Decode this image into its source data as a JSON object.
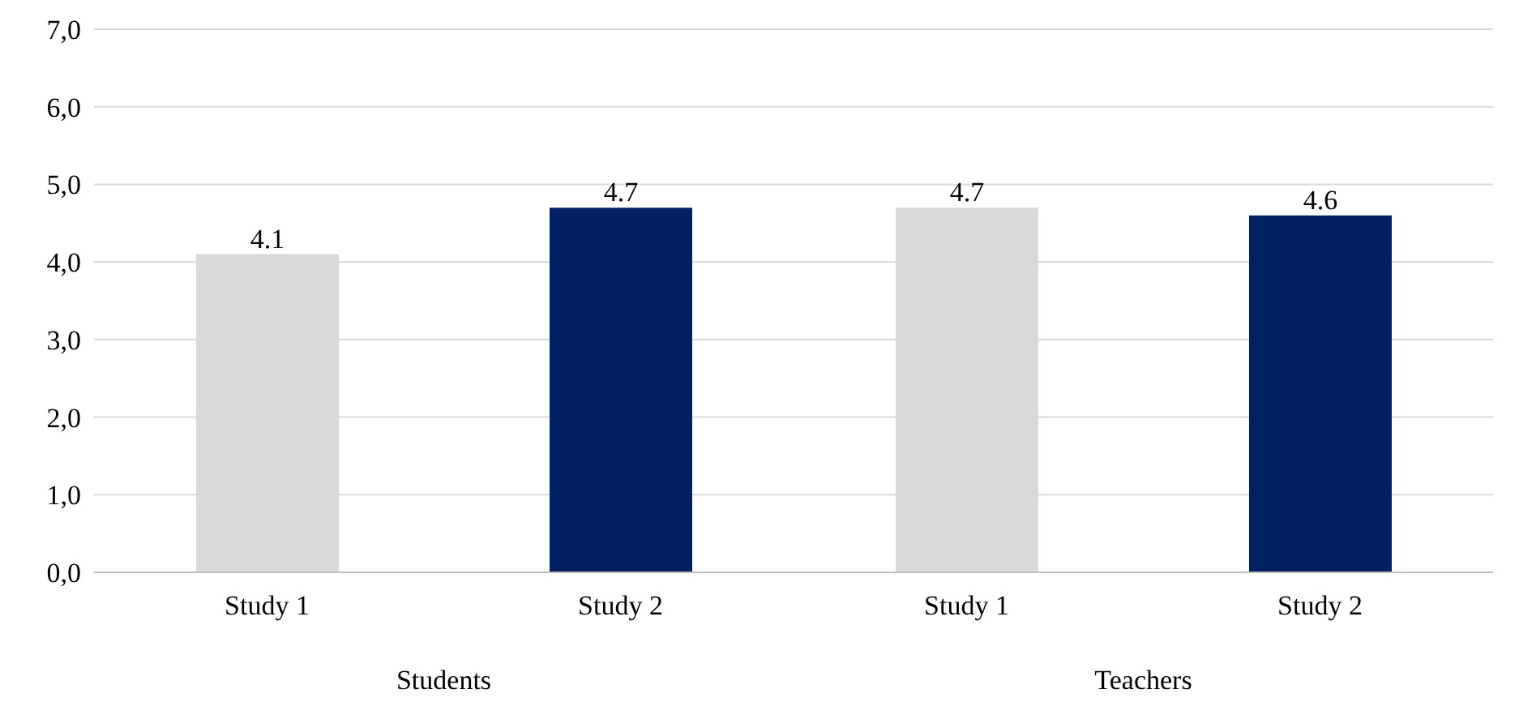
{
  "chart_data": {
    "type": "bar",
    "categories": [
      "Students",
      "Teachers"
    ],
    "series": [
      {
        "name": "Study 1",
        "color": "#d9d9d9",
        "values": [
          4.1,
          4.7
        ]
      },
      {
        "name": "Study 2",
        "color": "#002060",
        "values": [
          4.7,
          4.6
        ]
      }
    ],
    "ylim": [
      0,
      7
    ],
    "yticks": [
      {
        "value": 0,
        "label": "0,0"
      },
      {
        "value": 1,
        "label": "1,0"
      },
      {
        "value": 2,
        "label": "2,0"
      },
      {
        "value": 3,
        "label": "3,0"
      },
      {
        "value": 4,
        "label": "4,0"
      },
      {
        "value": 5,
        "label": "5,0"
      },
      {
        "value": 6,
        "label": "6,0"
      },
      {
        "value": 7,
        "label": "7,0"
      }
    ],
    "grid": "y",
    "data_labels": true
  }
}
